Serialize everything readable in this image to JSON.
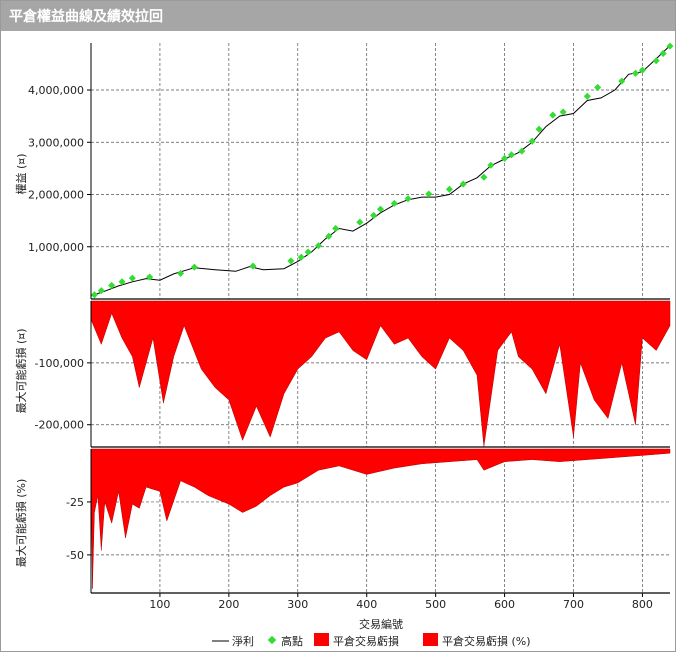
{
  "window": {
    "title": "平倉權益曲線及績效拉回"
  },
  "chart_data": {
    "type": "line",
    "x_label": "交易編號",
    "x_ticks": [
      100,
      200,
      300,
      400,
      500,
      600,
      700,
      800
    ],
    "x_range": [
      0,
      840
    ],
    "grid": true,
    "legend_position": "bottom",
    "legend": [
      {
        "label": "淨利",
        "marker": "line",
        "color": "#000000"
      },
      {
        "label": "高點",
        "marker": "diamond",
        "color": "#33dd33"
      },
      {
        "label": "平倉交易虧損",
        "marker": "box",
        "color": "#ff0000"
      },
      {
        "label": "平倉交易虧損 (%)",
        "marker": "box",
        "color": "#ff0000"
      }
    ],
    "panels": [
      {
        "name": "equity",
        "ylabel": "權益 (¤)",
        "ylim": [
          0,
          4900000
        ],
        "y_ticks": [
          1000000,
          2000000,
          3000000,
          4000000
        ],
        "y_tick_labels": [
          "1,000,000",
          "2,000,000",
          "3,000,000",
          "4,000,000"
        ],
        "series": [
          {
            "name": "淨利",
            "type": "line",
            "color": "#000000",
            "x": [
              0,
              20,
              40,
              60,
              80,
              100,
              120,
              150,
              180,
              210,
              230,
              250,
              280,
              300,
              320,
              340,
              360,
              380,
              400,
              420,
              440,
              460,
              480,
              500,
              520,
              540,
              560,
              580,
              600,
              620,
              640,
              660,
              680,
              700,
              720,
              740,
              760,
              780,
              800,
              820,
              840
            ],
            "y": [
              60000,
              150000,
              250000,
              330000,
              390000,
              360000,
              480000,
              600000,
              560000,
              530000,
              620000,
              560000,
              580000,
              720000,
              900000,
              1150000,
              1350000,
              1300000,
              1450000,
              1650000,
              1800000,
              1900000,
              1950000,
              1950000,
              2000000,
              2200000,
              2320000,
              2550000,
              2680000,
              2800000,
              3000000,
              3300000,
              3500000,
              3550000,
              3800000,
              3850000,
              4000000,
              4300000,
              4350000,
              4600000,
              4850000
            ]
          },
          {
            "name": "高點",
            "type": "scatter",
            "color": "#33dd33",
            "x": [
              5,
              15,
              30,
              45,
              60,
              85,
              130,
              150,
              235,
              290,
              305,
              315,
              330,
              345,
              355,
              390,
              410,
              420,
              440,
              460,
              490,
              520,
              540,
              570,
              580,
              600,
              610,
              625,
              640,
              650,
              670,
              685,
              720,
              735,
              770,
              790,
              800,
              820,
              830,
              840
            ],
            "y": [
              80000,
              160000,
              260000,
              330000,
              400000,
              420000,
              490000,
              610000,
              630000,
              730000,
              800000,
              900000,
              1020000,
              1200000,
              1350000,
              1470000,
              1600000,
              1720000,
              1830000,
              1920000,
              2010000,
              2100000,
              2200000,
              2330000,
              2560000,
              2690000,
              2760000,
              2830000,
              3020000,
              3250000,
              3520000,
              3580000,
              3880000,
              4050000,
              4170000,
              4320000,
              4380000,
              4560000,
              4700000,
              4840000
            ]
          }
        ]
      },
      {
        "name": "drawdown",
        "ylabel": "最大可能虧損 (¤)",
        "ylim": [
          -236000,
          0
        ],
        "y_ticks": [
          -100000,
          -200000
        ],
        "y_tick_labels": [
          "-100,000",
          "-200,000"
        ],
        "series": [
          {
            "name": "平倉交易虧損",
            "type": "area",
            "color": "#ff0000",
            "x": [
              0,
              15,
              30,
              45,
              60,
              70,
              90,
              105,
              120,
              135,
              160,
              180,
              200,
              220,
              240,
              260,
              280,
              300,
              320,
              340,
              360,
              380,
              400,
              420,
              440,
              460,
              480,
              500,
              520,
              540,
              560,
              570,
              590,
              610,
              620,
              640,
              660,
              680,
              700,
              710,
              730,
              750,
              770,
              790,
              800,
              820,
              840
            ],
            "y": [
              -30000,
              -70000,
              -20000,
              -60000,
              -90000,
              -140000,
              -60000,
              -165000,
              -90000,
              -40000,
              -110000,
              -140000,
              -160000,
              -225000,
              -170000,
              -220000,
              -150000,
              -110000,
              -90000,
              -60000,
              -50000,
              -80000,
              -95000,
              -40000,
              -70000,
              -60000,
              -90000,
              -110000,
              -60000,
              -80000,
              -120000,
              -235000,
              -80000,
              -50000,
              -90000,
              -110000,
              -150000,
              -70000,
              -220000,
              -100000,
              -160000,
              -190000,
              -100000,
              -200000,
              -60000,
              -80000,
              -40000
            ]
          }
        ]
      },
      {
        "name": "drawdown_pct",
        "ylabel": "最大可能虧損 (%)",
        "ylim": [
          -68,
          0
        ],
        "y_ticks": [
          -25,
          -50
        ],
        "y_tick_labels": [
          "-25",
          "-50"
        ],
        "series": [
          {
            "name": "平倉交易虧損 (%)",
            "type": "area",
            "color": "#ff0000",
            "x": [
              0,
              2,
              5,
              10,
              15,
              20,
              30,
              40,
              50,
              60,
              70,
              80,
              100,
              110,
              130,
              150,
              170,
              200,
              220,
              240,
              260,
              280,
              300,
              330,
              360,
              400,
              440,
              480,
              520,
              560,
              570,
              600,
              640,
              680,
              720,
              760,
              800,
              840
            ],
            "y": [
              0,
              -66,
              -30,
              -22,
              -48,
              -25,
              -35,
              -20,
              -42,
              -26,
              -28,
              -18,
              -20,
              -34,
              -15,
              -18,
              -22,
              -26,
              -30,
              -27,
              -22,
              -18,
              -16,
              -10,
              -8,
              -12,
              -9,
              -7,
              -6,
              -5,
              -10,
              -6,
              -5,
              -6,
              -5,
              -4,
              -3,
              -2
            ]
          }
        ]
      }
    ]
  }
}
